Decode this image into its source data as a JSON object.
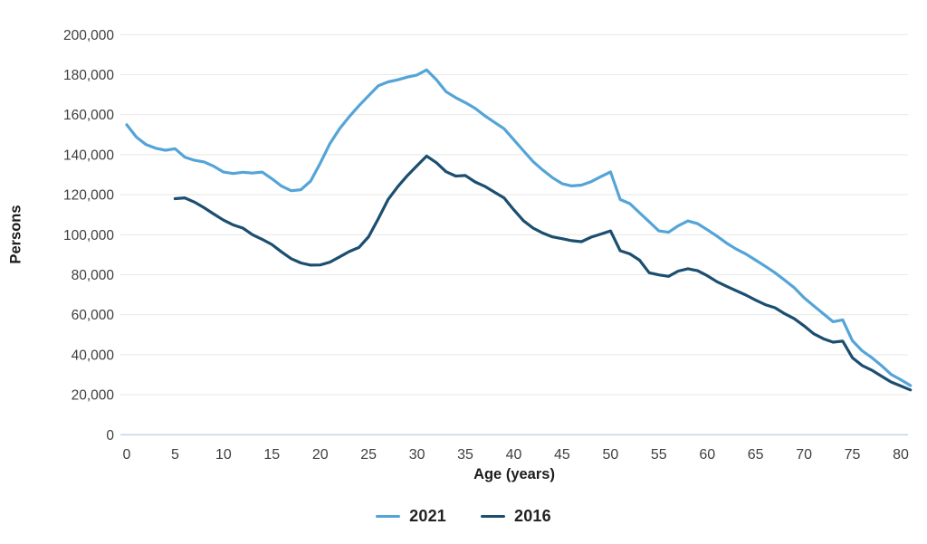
{
  "chart_data": {
    "type": "line",
    "title": "",
    "xlabel": "Age (years)",
    "ylabel": "Persons",
    "xlim": [
      0,
      81
    ],
    "ylim": [
      0,
      200000
    ],
    "xticks": [
      0,
      5,
      10,
      15,
      20,
      25,
      30,
      35,
      40,
      45,
      50,
      55,
      60,
      65,
      70,
      75,
      80
    ],
    "yticks": [
      0,
      20000,
      40000,
      60000,
      80000,
      100000,
      120000,
      140000,
      160000,
      180000,
      200000
    ],
    "grid": "horizontal-only",
    "legend_position": "bottom-center",
    "series": [
      {
        "name": "2021",
        "color": "#54A4D8",
        "age_start": 0,
        "age_step": 1,
        "values": [
          155000,
          148800,
          145000,
          143200,
          142200,
          143000,
          138800,
          137200,
          136400,
          134200,
          131300,
          130600,
          131200,
          130800,
          131300,
          128000,
          124300,
          122000,
          122500,
          126800,
          135800,
          145500,
          153000,
          159000,
          164500,
          169500,
          174500,
          176400,
          177400,
          178800,
          179800,
          182400,
          177500,
          171500,
          168500,
          166000,
          163200,
          159500,
          156200,
          153000,
          147500,
          142000,
          136500,
          132300,
          128500,
          125500,
          124400,
          124800,
          126500,
          129000,
          131400,
          117600,
          115500,
          111000,
          106500,
          101900,
          101200,
          104500,
          106900,
          105500,
          102500,
          99300,
          95800,
          92800,
          90300,
          87300,
          84200,
          81000,
          77300,
          73500,
          68500,
          64500,
          60500,
          56500,
          57400,
          47000,
          42000,
          38600,
          34600,
          30200,
          27500,
          24600
        ]
      },
      {
        "name": "2016",
        "color": "#1C4E70",
        "age_start": 5,
        "age_step": 1,
        "values": [
          118000,
          118400,
          116300,
          113500,
          110300,
          107300,
          104900,
          103300,
          100000,
          97700,
          95100,
          91400,
          88000,
          85900,
          84800,
          84900,
          86300,
          88900,
          91600,
          93600,
          99000,
          108000,
          117500,
          124000,
          129500,
          134500,
          139300,
          136000,
          131500,
          129300,
          129600,
          126400,
          124200,
          121300,
          118400,
          112500,
          107000,
          103300,
          100800,
          98900,
          98000,
          97000,
          96500,
          98800,
          100300,
          101900,
          92000,
          90400,
          87300,
          81000,
          79900,
          79200,
          81800,
          83000,
          82000,
          79500,
          76500,
          74200,
          72000,
          69800,
          67300,
          65000,
          63500,
          60500,
          58000,
          54500,
          50500,
          48000,
          46300,
          46800,
          38500,
          34600,
          32300,
          29300,
          26400,
          24400,
          22400
        ]
      }
    ]
  },
  "legend": {
    "items": [
      {
        "label": "2021"
      },
      {
        "label": "2016"
      }
    ]
  },
  "axes": {
    "x_title": "Age (years)",
    "y_title": "Persons"
  },
  "colors": {
    "series_2021": "#54A4D8",
    "series_2016": "#1C4E70",
    "gridline": "#e9e9e9",
    "zero_line": "#c6d8e8",
    "tick_text": "#3f3f3f",
    "title_text": "#1c1c1c",
    "background": "#ffffff"
  }
}
